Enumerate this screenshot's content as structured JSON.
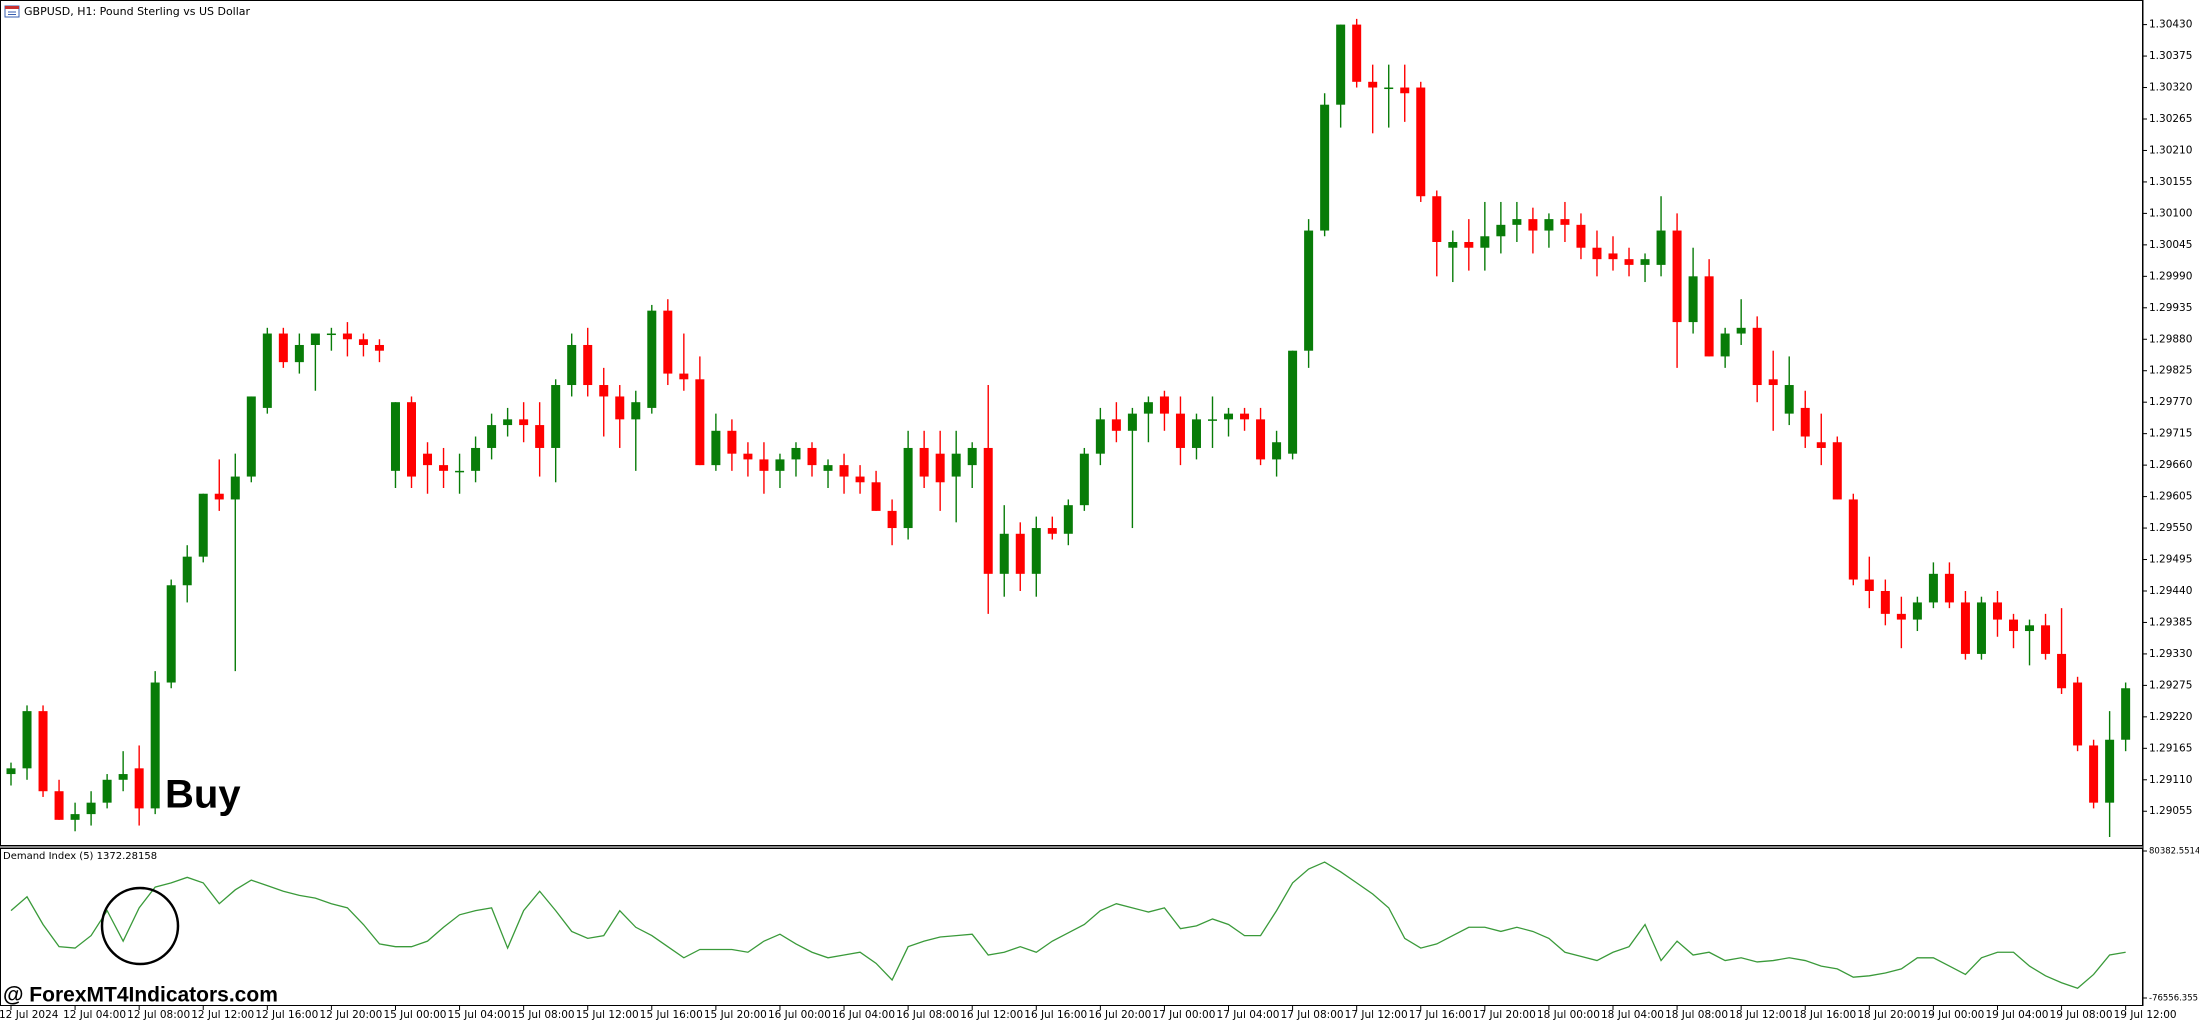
{
  "watermark": "@ ForexMT4Indicators.com",
  "chart_data": [
    {
      "type": "candlestick",
      "title": "GBPUSD, H1:  Pound Sterling vs US Dollar",
      "annotation": "Buy",
      "up_color": "#087c08",
      "down_color": "#ff0000",
      "categories": [
        "12 Jul 2024",
        null,
        null,
        null,
        "12 Jul 04:00",
        null,
        null,
        null,
        "12 Jul 08:00",
        null,
        null,
        null,
        "12 Jul 12:00",
        null,
        null,
        null,
        "12 Jul 16:00",
        null,
        null,
        null,
        "12 Jul 20:00",
        null,
        null,
        null,
        "15 Jul 00:00",
        null,
        null,
        null,
        "15 Jul 04:00",
        null,
        null,
        null,
        "15 Jul 08:00",
        null,
        null,
        null,
        "15 Jul 12:00",
        null,
        null,
        null,
        "15 Jul 16:00",
        null,
        null,
        null,
        "15 Jul 20:00",
        null,
        null,
        null,
        "16 Jul 00:00",
        null,
        null,
        null,
        "16 Jul 04:00",
        null,
        null,
        null,
        "16 Jul 08:00",
        null,
        null,
        null,
        "16 Jul 12:00",
        null,
        null,
        null,
        "16 Jul 16:00",
        null,
        null,
        null,
        "16 Jul 20:00",
        null,
        null,
        null,
        "17 Jul 00:00",
        null,
        null,
        null,
        "17 Jul 04:00",
        null,
        null,
        null,
        "17 Jul 08:00",
        null,
        null,
        null,
        "17 Jul 12:00",
        null,
        null,
        null,
        "17 Jul 16:00",
        null,
        null,
        null,
        "17 Jul 20:00",
        null,
        null,
        null,
        "18 Jul 00:00",
        null,
        null,
        null,
        "18 Jul 04:00",
        null,
        null,
        null,
        "18 Jul 08:00",
        null,
        null,
        null,
        "18 Jul 12:00",
        null,
        null,
        null,
        "18 Jul 16:00",
        null,
        null,
        null,
        "18 Jul 20:00",
        null,
        null,
        null,
        "19 Jul 00:00",
        null,
        null,
        null,
        "19 Jul 04:00",
        null,
        null,
        null,
        "19 Jul 08:00",
        null,
        null,
        null,
        "19 Jul 12:00"
      ],
      "open": [
        1.2912,
        1.2913,
        1.2923,
        1.2909,
        1.2904,
        1.2905,
        1.2907,
        1.2911,
        1.2913,
        1.2906,
        1.2928,
        1.2945,
        1.295,
        1.2961,
        1.296,
        1.2964,
        1.2976,
        1.2989,
        1.2984,
        1.2987,
        1.2989,
        1.2989,
        1.2988,
        1.2987,
        1.2965,
        1.2977,
        1.2968,
        1.2966,
        1.2965,
        1.2965,
        1.2969,
        1.2973,
        1.2974,
        1.2973,
        1.2969,
        1.298,
        1.2987,
        1.298,
        1.2978,
        1.2974,
        1.2976,
        1.2993,
        1.2982,
        1.2981,
        1.2966,
        1.2972,
        1.2968,
        1.2967,
        1.2965,
        1.2967,
        1.2969,
        1.2965,
        1.2966,
        1.2964,
        1.2963,
        1.2958,
        1.2955,
        1.2969,
        1.2968,
        1.2964,
        1.2966,
        1.2969,
        1.2947,
        1.2954,
        1.2947,
        1.2955,
        1.2954,
        1.2959,
        1.2968,
        1.2974,
        1.2972,
        1.2975,
        1.2978,
        1.2975,
        1.2969,
        1.2974,
        1.2974,
        1.2975,
        1.2974,
        1.2967,
        1.2968,
        1.2986,
        1.3007,
        1.3029,
        1.3043,
        1.3033,
        1.3032,
        1.3032,
        1.3032,
        1.3013,
        1.3004,
        1.3005,
        1.3004,
        1.3006,
        1.3008,
        1.3009,
        1.3007,
        1.3009,
        1.3008,
        1.3004,
        1.3003,
        1.3002,
        1.3001,
        1.3001,
        1.3007,
        1.2991,
        1.2999,
        1.2985,
        1.2989,
        1.299,
        1.2981,
        1.2975,
        1.2976,
        1.297,
        1.297,
        1.296,
        1.2946,
        1.2944,
        1.294,
        1.2939,
        1.2942,
        1.2947,
        1.2942,
        1.2933,
        1.2942,
        1.2939,
        1.2937,
        1.2938,
        1.2933,
        1.2928,
        1.2917,
        1.2907,
        1.2918
      ],
      "high": [
        1.2914,
        1.2924,
        1.2924,
        1.2911,
        1.2907,
        1.2909,
        1.2912,
        1.2916,
        1.2917,
        1.293,
        1.2946,
        1.2952,
        1.2961,
        1.2967,
        1.2968,
        1.2978,
        1.299,
        1.299,
        1.2989,
        1.2989,
        1.299,
        1.2991,
        1.2989,
        1.2988,
        1.2977,
        1.2978,
        1.297,
        1.2969,
        1.2968,
        1.2971,
        1.2975,
        1.2976,
        1.2977,
        1.2977,
        1.2981,
        1.2989,
        1.299,
        1.2983,
        1.298,
        1.2979,
        1.2994,
        1.2995,
        1.2989,
        1.2985,
        1.2975,
        1.2974,
        1.297,
        1.297,
        1.2968,
        1.297,
        1.297,
        1.2967,
        1.2968,
        1.2966,
        1.2965,
        1.296,
        1.2972,
        1.2972,
        1.2972,
        1.2972,
        1.297,
        1.298,
        1.2959,
        1.2956,
        1.2957,
        1.2957,
        1.296,
        1.2969,
        1.2976,
        1.2977,
        1.2976,
        1.2978,
        1.2979,
        1.2978,
        1.2975,
        1.2978,
        1.2976,
        1.2976,
        1.2976,
        1.2972,
        1.2986,
        1.3009,
        1.3031,
        1.3043,
        1.3044,
        1.3036,
        1.3036,
        1.3036,
        1.3033,
        1.3014,
        1.3007,
        1.3009,
        1.3012,
        1.3012,
        1.3012,
        1.3011,
        1.301,
        1.3012,
        1.301,
        1.3007,
        1.3006,
        1.3004,
        1.3003,
        1.3013,
        1.301,
        1.3004,
        1.3002,
        1.299,
        1.2995,
        1.2992,
        1.2986,
        1.2985,
        1.2979,
        1.2975,
        1.2971,
        1.2961,
        1.295,
        1.2946,
        1.2943,
        1.2943,
        1.2949,
        1.2949,
        1.2944,
        1.2943,
        1.2944,
        1.294,
        1.2939,
        1.294,
        1.2941,
        1.2929,
        1.2918,
        1.2923,
        1.2928
      ],
      "low": [
        1.291,
        1.2911,
        1.2908,
        1.2904,
        1.2902,
        1.2903,
        1.2906,
        1.2909,
        1.2903,
        1.2905,
        1.2927,
        1.2942,
        1.2949,
        1.2958,
        1.293,
        1.2963,
        1.2975,
        1.2983,
        1.2982,
        1.2979,
        1.2986,
        1.2985,
        1.2985,
        1.2984,
        1.2962,
        1.2962,
        1.2961,
        1.2962,
        1.2961,
        1.2963,
        1.2967,
        1.2971,
        1.297,
        1.2964,
        1.2963,
        1.2978,
        1.2978,
        1.2971,
        1.2969,
        1.2965,
        1.2975,
        1.298,
        1.2979,
        1.2966,
        1.2965,
        1.2965,
        1.2964,
        1.2961,
        1.2962,
        1.2964,
        1.2964,
        1.2962,
        1.2961,
        1.2961,
        1.2958,
        1.2952,
        1.2953,
        1.2962,
        1.2958,
        1.2956,
        1.2962,
        1.294,
        1.2943,
        1.2944,
        1.2943,
        1.2953,
        1.2952,
        1.2958,
        1.2966,
        1.297,
        1.2955,
        1.297,
        1.2972,
        1.2966,
        1.2967,
        1.2969,
        1.2971,
        1.2972,
        1.2966,
        1.2964,
        1.2967,
        1.2983,
        1.3006,
        1.3025,
        1.3032,
        1.3024,
        1.3025,
        1.3026,
        1.3012,
        1.2999,
        1.2998,
        1.3,
        1.3,
        1.3003,
        1.3005,
        1.3003,
        1.3004,
        1.3005,
        1.3002,
        1.2999,
        1.3,
        1.2999,
        1.2998,
        1.2999,
        1.2983,
        1.2989,
        1.2985,
        1.2983,
        1.2987,
        1.2977,
        1.2972,
        1.2973,
        1.2969,
        1.2966,
        1.296,
        1.2945,
        1.2941,
        1.2938,
        1.2934,
        1.2937,
        1.2941,
        1.2941,
        1.2932,
        1.2932,
        1.2936,
        1.2934,
        1.2931,
        1.2932,
        1.2926,
        1.2916,
        1.2906,
        1.2901,
        1.2916
      ],
      "close": [
        1.2913,
        1.2923,
        1.2909,
        1.2904,
        1.2905,
        1.2907,
        1.2911,
        1.2912,
        1.2906,
        1.2928,
        1.2945,
        1.295,
        1.2961,
        1.296,
        1.2964,
        1.2978,
        1.2989,
        1.2984,
        1.2987,
        1.2989,
        1.2989,
        1.2988,
        1.2987,
        1.2986,
        1.2977,
        1.2964,
        1.2966,
        1.2965,
        1.2965,
        1.2969,
        1.2973,
        1.2974,
        1.2973,
        1.2969,
        1.298,
        1.2987,
        1.298,
        1.2978,
        1.2974,
        1.2977,
        1.2993,
        1.2982,
        1.2981,
        1.2966,
        1.2972,
        1.2968,
        1.2967,
        1.2965,
        1.2967,
        1.2969,
        1.2966,
        1.2966,
        1.2964,
        1.2963,
        1.2958,
        1.2955,
        1.2969,
        1.2964,
        1.2963,
        1.2968,
        1.2969,
        1.2947,
        1.2954,
        1.2947,
        1.2955,
        1.2954,
        1.2959,
        1.2968,
        1.2974,
        1.2972,
        1.2975,
        1.2977,
        1.2975,
        1.2969,
        1.2974,
        1.2974,
        1.2975,
        1.2974,
        1.2967,
        1.297,
        1.2986,
        1.3007,
        1.3029,
        1.3043,
        1.3033,
        1.3032,
        1.3032,
        1.3031,
        1.3013,
        1.3005,
        1.3005,
        1.3004,
        1.3006,
        1.3008,
        1.3009,
        1.3007,
        1.3009,
        1.3008,
        1.3004,
        1.3002,
        1.3002,
        1.3001,
        1.3002,
        1.3007,
        1.2991,
        1.2999,
        1.2985,
        1.2989,
        1.299,
        1.298,
        1.298,
        1.298,
        1.2971,
        1.2969,
        1.296,
        1.2946,
        1.2944,
        1.294,
        1.2939,
        1.2942,
        1.2947,
        1.2942,
        1.2933,
        1.2942,
        1.2939,
        1.2937,
        1.2938,
        1.2933,
        1.2927,
        1.2917,
        1.2907,
        1.2918,
        1.2927
      ],
      "ylim": [
        1.28996,
        1.30473
      ],
      "yticks": [
        {
          "value": 1.3043,
          "label": "1.30430"
        },
        1.30375,
        {
          "value": 1.3032,
          "label": "1.30320"
        },
        1.30265,
        {
          "value": 1.3021,
          "label": "1.30210"
        },
        1.30155,
        {
          "value": 1.301,
          "label": "1.30100"
        },
        1.30045,
        {
          "value": 1.2999,
          "label": "1.29990"
        },
        1.29935,
        {
          "value": 1.2988,
          "label": "1.29880"
        },
        1.29825,
        {
          "value": 1.2977,
          "label": "1.29770"
        },
        1.29715,
        {
          "value": 1.2966,
          "label": "1.29660"
        },
        1.29605,
        {
          "value": 1.2955,
          "label": "1.29550"
        },
        1.29495,
        {
          "value": 1.2944,
          "label": "1.29440"
        },
        1.29385,
        {
          "value": 1.2933,
          "label": "1.29330"
        },
        1.29275,
        {
          "value": 1.2922,
          "label": "1.29220"
        },
        1.29165,
        {
          "value": 1.2911,
          "label": "1.29110"
        },
        1.29055
      ]
    },
    {
      "type": "line",
      "title": "Demand Index (5) 1372.28158",
      "color": "#3a9a3a",
      "values": [
        16717,
        31523,
        1911,
        -21778,
        -23259,
        -9934,
        16717,
        -15856,
        19678,
        41887,
        46329,
        52252,
        46329,
        24120,
        38926,
        49290,
        43368,
        37446,
        33004,
        30043,
        24120,
        19678,
        1911,
        -18817,
        -21778,
        -21778,
        -15856,
        -1050,
        12275,
        16717,
        19678,
        -23259,
        16717,
        37446,
        16717,
        -5492,
        -12895,
        -9934,
        16717,
        -1050,
        -9934,
        -21778,
        -33623,
        -24740,
        -24740,
        -24740,
        -27701,
        -15856,
        -8453,
        -18817,
        -27701,
        -33623,
        -30662,
        -27701,
        -39546,
        -57313,
        -21778,
        -15856,
        -11414,
        -9934,
        -8453,
        -30662,
        -27701,
        -21778,
        -27701,
        -15856,
        -6972,
        1911,
        16717,
        24120,
        19678,
        15237,
        19678,
        -2531,
        431,
        7834,
        1911,
        -9934,
        -9934,
        16717,
        46329,
        61135,
        68538,
        58174,
        46329,
        34484,
        19678,
        -12895,
        -23259,
        -18817,
        -9934,
        -1050,
        -1050,
        -5492,
        -1050,
        -5492,
        -12895,
        -27701,
        -32143,
        -36585,
        -27701,
        -21778,
        1911,
        -36585,
        -15856,
        -30662,
        -27701,
        -36585,
        -33623,
        -38065,
        -36585,
        -33623,
        -36585,
        -42507,
        -45468,
        -54352,
        -52871,
        -49910,
        -45468,
        -33623,
        -33623,
        -42507,
        -51390,
        -33623,
        -27701,
        -27701,
        -42507,
        -52871,
        -60274,
        -66196,
        -51390,
        -30662,
        -27701
      ],
      "ylim": [
        -76556.3551,
        80382.5514
      ],
      "yticks": [
        80382.5514,
        -76556.3551
      ]
    }
  ]
}
